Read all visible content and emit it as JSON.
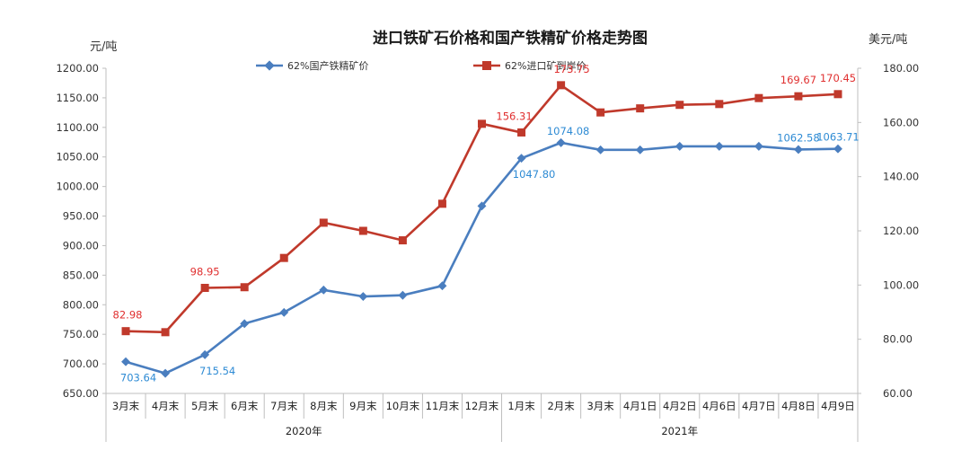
{
  "chart_data": {
    "type": "line",
    "title": "进口铁矿石价格和国产铁精矿价格走势图",
    "ylabel_left": "元/吨",
    "ylabel_right": "美元/吨",
    "categories": [
      "3月末",
      "4月末",
      "5月末",
      "6月末",
      "7月末",
      "8月末",
      "9月末",
      "10月末",
      "11月末",
      "12月末",
      "1月末",
      "2月末",
      "3月末",
      "4月1日",
      "4月2日",
      "4月6日",
      "4月7日",
      "4月8日",
      "4月9日"
    ],
    "year_groups": [
      {
        "label": "2020年",
        "start": 0,
        "end": 9
      },
      {
        "label": "2021年",
        "start": 10,
        "end": 18
      }
    ],
    "y_left": {
      "min": 650,
      "max": 1200,
      "step": 50,
      "tick_labels": [
        "650.00",
        "700.00",
        "750.00",
        "800.00",
        "850.00",
        "900.00",
        "950.00",
        "1000.00",
        "1050.00",
        "1100.00",
        "1150.00",
        "1200.00"
      ]
    },
    "y_right": {
      "min": 60,
      "max": 180,
      "step": 20,
      "tick_labels": [
        "60.00",
        "80.00",
        "100.00",
        "120.00",
        "140.00",
        "160.00",
        "180.00"
      ]
    },
    "series": [
      {
        "name": "62%国产铁精矿价",
        "axis": "left",
        "color": "#4a7ebf",
        "marker": "diamond",
        "values": [
          703.64,
          684,
          715.54,
          768,
          787,
          825,
          814,
          816,
          832,
          967,
          1047.8,
          1074.08,
          1062,
          1062,
          1068,
          1068,
          1068,
          1062.58,
          1063.71
        ],
        "data_labels": [
          {
            "index": 0,
            "text": "703.64"
          },
          {
            "index": 2,
            "text": "715.54"
          },
          {
            "index": 10,
            "text": "1047.80"
          },
          {
            "index": 11,
            "text": "1074.08"
          },
          {
            "index": 17,
            "text": "1062.58"
          },
          {
            "index": 18,
            "text": "1063.71"
          }
        ]
      },
      {
        "name": "62%进口矿到岸价",
        "axis": "right",
        "color": "#c0392b",
        "marker": "square",
        "values": [
          82.98,
          82.6,
          98.95,
          99.2,
          110,
          123,
          120,
          116.5,
          130,
          159.5,
          156.31,
          173.75,
          163.7,
          165.2,
          166.5,
          166.8,
          169,
          169.67,
          170.45
        ],
        "data_labels": [
          {
            "index": 0,
            "text": "82.98"
          },
          {
            "index": 2,
            "text": "98.95"
          },
          {
            "index": 10,
            "text": "156.31"
          },
          {
            "index": 11,
            "text": "173.75"
          },
          {
            "index": 17,
            "text": "169.67"
          },
          {
            "index": 18,
            "text": "170.45"
          }
        ]
      }
    ],
    "legend_position": "top"
  }
}
